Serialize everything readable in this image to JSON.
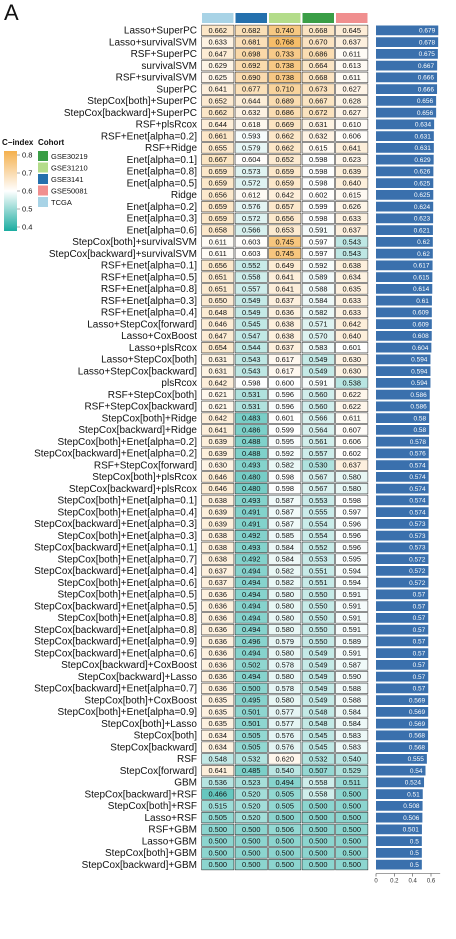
{
  "panel_label": "A",
  "legend": {
    "cindex_title": "C−index",
    "cindex_ticks": [
      "0.8",
      "0.7",
      "0.6",
      "0.5",
      "0.4"
    ],
    "cohort_title": "Cohort",
    "cohorts": [
      {
        "name": "GSE30219",
        "color": "#3a9e46"
      },
      {
        "name": "GSE31210",
        "color": "#b3dc8a"
      },
      {
        "name": "GSE3141",
        "color": "#2470ad"
      },
      {
        "name": "GSE50081",
        "color": "#f08f8f"
      },
      {
        "name": "TCGA",
        "color": "#a8d3e6"
      }
    ]
  },
  "colors": {
    "high": "#f4b04d",
    "mid": "#ffffff",
    "low": "#1aaca0",
    "bar": "#3a70ad"
  },
  "chart_data": {
    "type": "heatmap",
    "columns": [
      "TCGA",
      "GSE3141",
      "GSE31210",
      "GSE30219",
      "GSE50081"
    ],
    "column_colors": [
      "#a8d3e6",
      "#2470ad",
      "#b3dc8a",
      "#3a9e46",
      "#f08f8f"
    ],
    "color_range": [
      0.4,
      0.8
    ],
    "bar_axis": {
      "ticks": [
        "0",
        "0.2",
        "0.4",
        "0.6"
      ],
      "max": 0.7
    },
    "rows": [
      {
        "label": "Lasso+SuperPC",
        "values": [
          "0.662",
          "0.682",
          "0.740",
          "0.668",
          "0.645"
        ],
        "mean": "0.679"
      },
      {
        "label": "Lasso+survivalSVM",
        "values": [
          "0.633",
          "0.681",
          "0.768",
          "0.670",
          "0.637"
        ],
        "mean": "0.678"
      },
      {
        "label": "RSF+SuperPC",
        "values": [
          "0.647",
          "0.698",
          "0.733",
          "0.686",
          "0.611"
        ],
        "mean": "0.675"
      },
      {
        "label": "survivalSVM",
        "values": [
          "0.629",
          "0.692",
          "0.738",
          "0.664",
          "0.613"
        ],
        "mean": "0.667"
      },
      {
        "label": "RSF+survivalSVM",
        "values": [
          "0.625",
          "0.690",
          "0.738",
          "0.668",
          "0.611"
        ],
        "mean": "0.666"
      },
      {
        "label": "SuperPC",
        "values": [
          "0.641",
          "0.677",
          "0.710",
          "0.673",
          "0.627"
        ],
        "mean": "0.666"
      },
      {
        "label": "StepCox[both]+SuperPC",
        "values": [
          "0.652",
          "0.644",
          "0.689",
          "0.667",
          "0.628"
        ],
        "mean": "0.656"
      },
      {
        "label": "StepCox[backward]+SuperPC",
        "values": [
          "0.662",
          "0.632",
          "0.686",
          "0.672",
          "0.627"
        ],
        "mean": "0.656"
      },
      {
        "label": "RSF+plsRcox",
        "values": [
          "0.644",
          "0.618",
          "0.669",
          "0.631",
          "0.610"
        ],
        "mean": "0.634"
      },
      {
        "label": "RSF+Enet[alpha=0.2]",
        "values": [
          "0.661",
          "0.593",
          "0.662",
          "0.632",
          "0.606"
        ],
        "mean": "0.631"
      },
      {
        "label": "RSF+Ridge",
        "values": [
          "0.655",
          "0.579",
          "0.662",
          "0.615",
          "0.641"
        ],
        "mean": "0.631"
      },
      {
        "label": "Enet[alpha=0.1]",
        "values": [
          "0.667",
          "0.604",
          "0.652",
          "0.598",
          "0.623"
        ],
        "mean": "0.629"
      },
      {
        "label": "Enet[alpha=0.8]",
        "values": [
          "0.659",
          "0.573",
          "0.659",
          "0.598",
          "0.639"
        ],
        "mean": "0.626"
      },
      {
        "label": "Enet[alpha=0.5]",
        "values": [
          "0.659",
          "0.572",
          "0.659",
          "0.598",
          "0.640"
        ],
        "mean": "0.625"
      },
      {
        "label": "Ridge",
        "values": [
          "0.656",
          "0.612",
          "0.642",
          "0.602",
          "0.615"
        ],
        "mean": "0.625"
      },
      {
        "label": "Enet[alpha=0.2]",
        "values": [
          "0.659",
          "0.576",
          "0.657",
          "0.599",
          "0.626"
        ],
        "mean": "0.624"
      },
      {
        "label": "Enet[alpha=0.3]",
        "values": [
          "0.659",
          "0.572",
          "0.656",
          "0.598",
          "0.633"
        ],
        "mean": "0.623"
      },
      {
        "label": "Enet[alpha=0.6]",
        "values": [
          "0.658",
          "0.566",
          "0.653",
          "0.591",
          "0.637"
        ],
        "mean": "0.621"
      },
      {
        "label": "StepCox[both]+survivalSVM",
        "values": [
          "0.611",
          "0.603",
          "0.745",
          "0.597",
          "0.543"
        ],
        "mean": "0.62"
      },
      {
        "label": "StepCox[backward]+survivalSVM",
        "values": [
          "0.611",
          "0.603",
          "0.745",
          "0.597",
          "0.543"
        ],
        "mean": "0.62"
      },
      {
        "label": "RSF+Enet[alpha=0.1]",
        "values": [
          "0.656",
          "0.552",
          "0.649",
          "0.592",
          "0.638"
        ],
        "mean": "0.617"
      },
      {
        "label": "RSF+Enet[alpha=0.5]",
        "values": [
          "0.651",
          "0.558",
          "0.641",
          "0.589",
          "0.634"
        ],
        "mean": "0.615"
      },
      {
        "label": "RSF+Enet[alpha=0.8]",
        "values": [
          "0.651",
          "0.557",
          "0.641",
          "0.588",
          "0.635"
        ],
        "mean": "0.614"
      },
      {
        "label": "RSF+Enet[alpha=0.3]",
        "values": [
          "0.650",
          "0.549",
          "0.637",
          "0.584",
          "0.633"
        ],
        "mean": "0.61"
      },
      {
        "label": "RSF+Enet[alpha=0.4]",
        "values": [
          "0.648",
          "0.549",
          "0.636",
          "0.582",
          "0.633"
        ],
        "mean": "0.609"
      },
      {
        "label": "Lasso+StepCox[forward]",
        "values": [
          "0.646",
          "0.545",
          "0.638",
          "0.571",
          "0.642"
        ],
        "mean": "0.609"
      },
      {
        "label": "Lasso+CoxBoost",
        "values": [
          "0.647",
          "0.547",
          "0.638",
          "0.570",
          "0.640"
        ],
        "mean": "0.608"
      },
      {
        "label": "Lasso+plsRcox",
        "values": [
          "0.654",
          "0.544",
          "0.637",
          "0.583",
          "0.601"
        ],
        "mean": "0.604"
      },
      {
        "label": "Lasso+StepCox[both]",
        "values": [
          "0.631",
          "0.543",
          "0.617",
          "0.549",
          "0.630"
        ],
        "mean": "0.594"
      },
      {
        "label": "Lasso+StepCox[backward]",
        "values": [
          "0.631",
          "0.543",
          "0.617",
          "0.549",
          "0.630"
        ],
        "mean": "0.594"
      },
      {
        "label": "plsRcox",
        "values": [
          "0.642",
          "0.598",
          "0.600",
          "0.591",
          "0.538"
        ],
        "mean": "0.594"
      },
      {
        "label": "RSF+StepCox[both]",
        "values": [
          "0.621",
          "0.531",
          "0.596",
          "0.560",
          "0.622"
        ],
        "mean": "0.586"
      },
      {
        "label": "RSF+StepCox[backward]",
        "values": [
          "0.621",
          "0.531",
          "0.596",
          "0.560",
          "0.622"
        ],
        "mean": "0.586"
      },
      {
        "label": "StepCox[both]+Ridge",
        "values": [
          "0.642",
          "0.483",
          "0.601",
          "0.566",
          "0.611"
        ],
        "mean": "0.58"
      },
      {
        "label": "StepCox[backward]+Ridge",
        "values": [
          "0.641",
          "0.486",
          "0.599",
          "0.564",
          "0.607"
        ],
        "mean": "0.58"
      },
      {
        "label": "StepCox[both]+Enet[alpha=0.2]",
        "values": [
          "0.639",
          "0.488",
          "0.595",
          "0.561",
          "0.606"
        ],
        "mean": "0.578"
      },
      {
        "label": "StepCox[backward]+Enet[alpha=0.2]",
        "values": [
          "0.639",
          "0.488",
          "0.592",
          "0.557",
          "0.602"
        ],
        "mean": "0.576"
      },
      {
        "label": "RSF+StepCox[forward]",
        "values": [
          "0.630",
          "0.493",
          "0.582",
          "0.530",
          "0.637"
        ],
        "mean": "0.574"
      },
      {
        "label": "StepCox[both]+plsRcox",
        "values": [
          "0.646",
          "0.480",
          "0.598",
          "0.567",
          "0.580"
        ],
        "mean": "0.574"
      },
      {
        "label": "StepCox[backward]+plsRcox",
        "values": [
          "0.646",
          "0.480",
          "0.598",
          "0.567",
          "0.580"
        ],
        "mean": "0.574"
      },
      {
        "label": "StepCox[both]+Enet[alpha=0.1]",
        "values": [
          "0.638",
          "0.493",
          "0.587",
          "0.553",
          "0.598"
        ],
        "mean": "0.574"
      },
      {
        "label": "StepCox[both]+Enet[alpha=0.4]",
        "values": [
          "0.639",
          "0.491",
          "0.587",
          "0.555",
          "0.597"
        ],
        "mean": "0.574"
      },
      {
        "label": "StepCox[backward]+Enet[alpha=0.3]",
        "values": [
          "0.639",
          "0.491",
          "0.587",
          "0.554",
          "0.596"
        ],
        "mean": "0.573"
      },
      {
        "label": "StepCox[both]+Enet[alpha=0.3]",
        "values": [
          "0.638",
          "0.492",
          "0.585",
          "0.554",
          "0.596"
        ],
        "mean": "0.573"
      },
      {
        "label": "StepCox[backward]+Enet[alpha=0.1]",
        "values": [
          "0.638",
          "0.493",
          "0.584",
          "0.552",
          "0.596"
        ],
        "mean": "0.573"
      },
      {
        "label": "StepCox[both]+Enet[alpha=0.7]",
        "values": [
          "0.638",
          "0.492",
          "0.584",
          "0.553",
          "0.595"
        ],
        "mean": "0.572"
      },
      {
        "label": "StepCox[backward]+Enet[alpha=0.4]",
        "values": [
          "0.637",
          "0.494",
          "0.582",
          "0.551",
          "0.594"
        ],
        "mean": "0.572"
      },
      {
        "label": "StepCox[both]+Enet[alpha=0.6]",
        "values": [
          "0.637",
          "0.494",
          "0.582",
          "0.551",
          "0.594"
        ],
        "mean": "0.572"
      },
      {
        "label": "StepCox[both]+Enet[alpha=0.5]",
        "values": [
          "0.636",
          "0.494",
          "0.580",
          "0.550",
          "0.591"
        ],
        "mean": "0.57"
      },
      {
        "label": "StepCox[backward]+Enet[alpha=0.5]",
        "values": [
          "0.636",
          "0.494",
          "0.580",
          "0.550",
          "0.591"
        ],
        "mean": "0.57"
      },
      {
        "label": "StepCox[both]+Enet[alpha=0.8]",
        "values": [
          "0.636",
          "0.494",
          "0.580",
          "0.550",
          "0.591"
        ],
        "mean": "0.57"
      },
      {
        "label": "StepCox[backward]+Enet[alpha=0.8]",
        "values": [
          "0.636",
          "0.494",
          "0.580",
          "0.550",
          "0.591"
        ],
        "mean": "0.57"
      },
      {
        "label": "StepCox[backward]+Enet[alpha=0.9]",
        "values": [
          "0.636",
          "0.496",
          "0.579",
          "0.550",
          "0.589"
        ],
        "mean": "0.57"
      },
      {
        "label": "StepCox[backward]+Enet[alpha=0.6]",
        "values": [
          "0.636",
          "0.494",
          "0.580",
          "0.549",
          "0.591"
        ],
        "mean": "0.57"
      },
      {
        "label": "StepCox[backward]+CoxBoost",
        "values": [
          "0.636",
          "0.502",
          "0.578",
          "0.549",
          "0.587"
        ],
        "mean": "0.57"
      },
      {
        "label": "StepCox[backward]+Lasso",
        "values": [
          "0.636",
          "0.494",
          "0.580",
          "0.549",
          "0.590"
        ],
        "mean": "0.57"
      },
      {
        "label": "StepCox[backward]+Enet[alpha=0.7]",
        "values": [
          "0.636",
          "0.500",
          "0.578",
          "0.549",
          "0.588"
        ],
        "mean": "0.57"
      },
      {
        "label": "StepCox[both]+CoxBoost",
        "values": [
          "0.635",
          "0.495",
          "0.580",
          "0.549",
          "0.588"
        ],
        "mean": "0.569"
      },
      {
        "label": "StepCox[both]+Enet[alpha=0.9]",
        "values": [
          "0.635",
          "0.501",
          "0.577",
          "0.548",
          "0.584"
        ],
        "mean": "0.569"
      },
      {
        "label": "StepCox[both]+Lasso",
        "values": [
          "0.635",
          "0.501",
          "0.577",
          "0.548",
          "0.584"
        ],
        "mean": "0.569"
      },
      {
        "label": "StepCox[both]",
        "values": [
          "0.634",
          "0.505",
          "0.576",
          "0.545",
          "0.583"
        ],
        "mean": "0.568"
      },
      {
        "label": "StepCox[backward]",
        "values": [
          "0.634",
          "0.505",
          "0.576",
          "0.545",
          "0.583"
        ],
        "mean": "0.568"
      },
      {
        "label": "RSF",
        "values": [
          "0.548",
          "0.532",
          "0.620",
          "0.532",
          "0.540"
        ],
        "mean": "0.555"
      },
      {
        "label": "StepCox[forward]",
        "values": [
          "0.641",
          "0.485",
          "0.540",
          "0.507",
          "0.529"
        ],
        "mean": "0.54"
      },
      {
        "label": "GBM",
        "values": [
          "0.536",
          "0.523",
          "0.494",
          "0.558",
          "0.511"
        ],
        "mean": "0.524"
      },
      {
        "label": "StepCox[backward]+RSF",
        "values": [
          "0.466",
          "0.520",
          "0.505",
          "0.558",
          "0.500"
        ],
        "mean": "0.51"
      },
      {
        "label": "StepCox[both]+RSF",
        "values": [
          "0.515",
          "0.520",
          "0.505",
          "0.500",
          "0.500"
        ],
        "mean": "0.508"
      },
      {
        "label": "Lasso+RSF",
        "values": [
          "0.505",
          "0.520",
          "0.500",
          "0.500",
          "0.500"
        ],
        "mean": "0.506"
      },
      {
        "label": "RSF+GBM",
        "values": [
          "0.500",
          "0.500",
          "0.506",
          "0.500",
          "0.500"
        ],
        "mean": "0.501"
      },
      {
        "label": "Lasso+GBM",
        "values": [
          "0.500",
          "0.500",
          "0.500",
          "0.500",
          "0.500"
        ],
        "mean": "0.5"
      },
      {
        "label": "StepCox[both]+GBM",
        "values": [
          "0.500",
          "0.500",
          "0.500",
          "0.500",
          "0.500"
        ],
        "mean": "0.5"
      },
      {
        "label": "StepCox[backward]+GBM",
        "values": [
          "0.500",
          "0.500",
          "0.500",
          "0.500",
          "0.500"
        ],
        "mean": "0.5"
      }
    ]
  }
}
